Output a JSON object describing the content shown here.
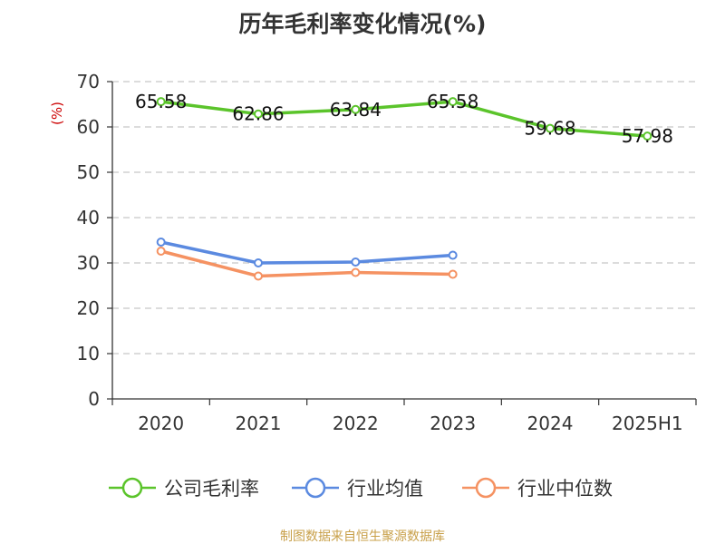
{
  "chart_data": {
    "type": "line",
    "title": "历年毛利率变化情况(%)",
    "ylabel": "(%)",
    "xlabel": "",
    "categories": [
      "2020",
      "2021",
      "2022",
      "2023",
      "2024",
      "2025H1"
    ],
    "ylim": [
      0,
      70
    ],
    "yticks": [
      0,
      10,
      20,
      30,
      40,
      50,
      60,
      70
    ],
    "grid": true,
    "legend_position": "bottom",
    "series": [
      {
        "name": "公司毛利率",
        "color": "#5bc42b",
        "values": [
          65.58,
          62.86,
          63.84,
          65.58,
          59.68,
          57.98
        ],
        "labels": [
          "65.58",
          "62.86",
          "63.84",
          "65.58",
          "59.68",
          "57.98"
        ]
      },
      {
        "name": "行业均值",
        "color": "#5b8ae0",
        "values": [
          34.6,
          30.0,
          30.2,
          31.7,
          null,
          null
        ],
        "labels": []
      },
      {
        "name": "行业中位数",
        "color": "#f59262",
        "values": [
          32.6,
          27.1,
          27.9,
          27.5,
          null,
          null
        ],
        "labels": []
      }
    ]
  },
  "source": "制图数据来自恒生聚源数据库"
}
